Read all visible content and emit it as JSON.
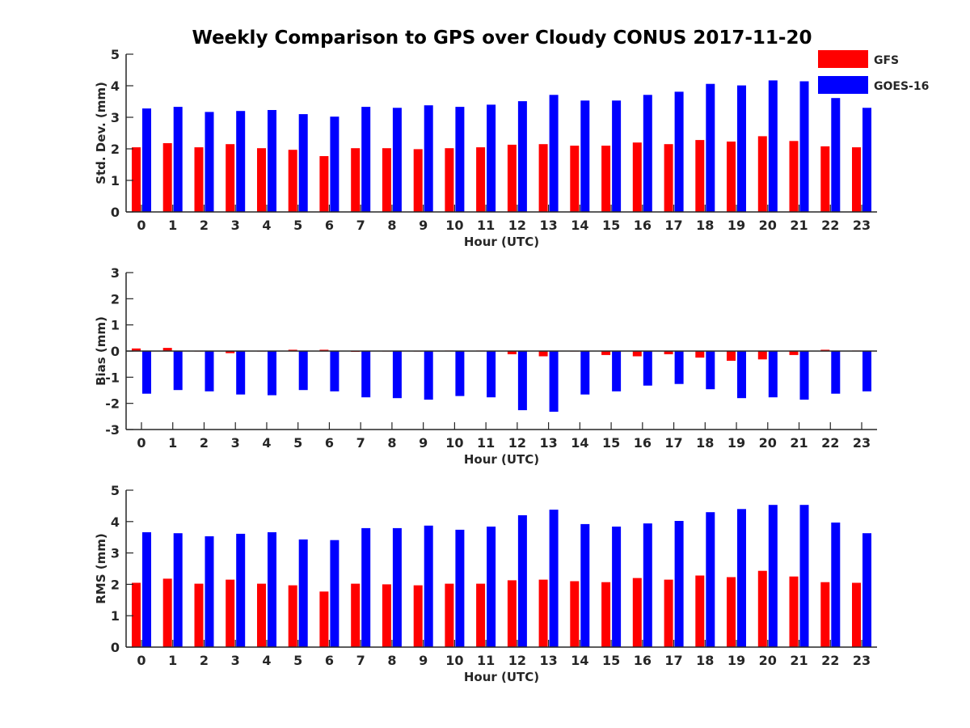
{
  "title": "Weekly Comparison to GPS over Cloudy CONUS 2017-11-20",
  "legend": {
    "position": "top-right",
    "items": [
      {
        "label": "GFS",
        "color": "#ff0000"
      },
      {
        "label": "GOES-16",
        "color": "#0000ff"
      }
    ]
  },
  "chart_data": [
    {
      "type": "bar",
      "xlabel": "Hour (UTC)",
      "ylabel": "Std. Dev. (mm)",
      "ylim": [
        0,
        5
      ],
      "yticks": [
        0,
        1,
        2,
        3,
        4,
        5
      ],
      "categories": [
        "0",
        "1",
        "2",
        "3",
        "4",
        "5",
        "6",
        "7",
        "8",
        "9",
        "10",
        "11",
        "12",
        "13",
        "14",
        "15",
        "16",
        "17",
        "18",
        "19",
        "20",
        "21",
        "22",
        "23"
      ],
      "series": [
        {
          "name": "GFS",
          "color": "#ff0000",
          "values": [
            2.05,
            2.18,
            2.05,
            2.15,
            2.02,
            1.97,
            1.77,
            2.02,
            2.02,
            1.99,
            2.02,
            2.05,
            2.13,
            2.15,
            2.1,
            2.1,
            2.2,
            2.15,
            2.28,
            2.23,
            2.4,
            2.25,
            2.08,
            2.05
          ]
        },
        {
          "name": "GOES-16",
          "color": "#0000ff",
          "values": [
            3.28,
            3.33,
            3.17,
            3.2,
            3.23,
            3.1,
            3.02,
            3.33,
            3.3,
            3.38,
            3.33,
            3.4,
            3.51,
            3.71,
            3.53,
            3.53,
            3.71,
            3.81,
            4.06,
            4.01,
            4.17,
            4.14,
            3.61,
            3.3
          ]
        }
      ]
    },
    {
      "type": "bar",
      "xlabel": "Hour (UTC)",
      "ylabel": "Bias (mm)",
      "ylim": [
        -3,
        3
      ],
      "yticks": [
        -3,
        -2,
        -1,
        0,
        1,
        2,
        3
      ],
      "zero_line": true,
      "categories": [
        "0",
        "1",
        "2",
        "3",
        "4",
        "5",
        "6",
        "7",
        "8",
        "9",
        "10",
        "11",
        "12",
        "13",
        "14",
        "15",
        "16",
        "17",
        "18",
        "19",
        "20",
        "21",
        "22",
        "23"
      ],
      "series": [
        {
          "name": "GFS",
          "color": "#ff0000",
          "values": [
            0.1,
            0.12,
            -0.02,
            -0.08,
            -0.02,
            0.05,
            0.05,
            -0.03,
            -0.02,
            -0.02,
            0.02,
            0.02,
            -0.12,
            -0.2,
            -0.02,
            -0.15,
            -0.2,
            -0.12,
            -0.25,
            -0.37,
            -0.32,
            -0.15,
            0.05,
            0.02
          ]
        },
        {
          "name": "GOES-16",
          "color": "#0000ff",
          "values": [
            -1.63,
            -1.49,
            -1.54,
            -1.66,
            -1.69,
            -1.49,
            -1.54,
            -1.77,
            -1.8,
            -1.86,
            -1.72,
            -1.77,
            -2.26,
            -2.32,
            -1.66,
            -1.54,
            -1.32,
            -1.26,
            -1.46,
            -1.8,
            -1.77,
            -1.86,
            -1.63,
            -1.54
          ]
        }
      ]
    },
    {
      "type": "bar",
      "xlabel": "Hour (UTC)",
      "ylabel": "RMS (mm)",
      "ylim": [
        0,
        5
      ],
      "yticks": [
        0,
        1,
        2,
        3,
        4,
        5
      ],
      "categories": [
        "0",
        "1",
        "2",
        "3",
        "4",
        "5",
        "6",
        "7",
        "8",
        "9",
        "10",
        "11",
        "12",
        "13",
        "14",
        "15",
        "16",
        "17",
        "18",
        "19",
        "20",
        "21",
        "22",
        "23"
      ],
      "series": [
        {
          "name": "GFS",
          "color": "#ff0000",
          "values": [
            2.05,
            2.18,
            2.02,
            2.15,
            2.02,
            1.97,
            1.77,
            2.02,
            2.0,
            1.97,
            2.02,
            2.02,
            2.13,
            2.15,
            2.1,
            2.07,
            2.2,
            2.15,
            2.28,
            2.23,
            2.43,
            2.25,
            2.07,
            2.05
          ]
        },
        {
          "name": "GOES-16",
          "color": "#0000ff",
          "values": [
            3.66,
            3.63,
            3.53,
            3.61,
            3.66,
            3.43,
            3.41,
            3.79,
            3.79,
            3.87,
            3.74,
            3.84,
            4.2,
            4.38,
            3.92,
            3.84,
            3.94,
            4.02,
            4.3,
            4.4,
            4.53,
            4.53,
            3.97,
            3.63
          ]
        }
      ]
    }
  ]
}
